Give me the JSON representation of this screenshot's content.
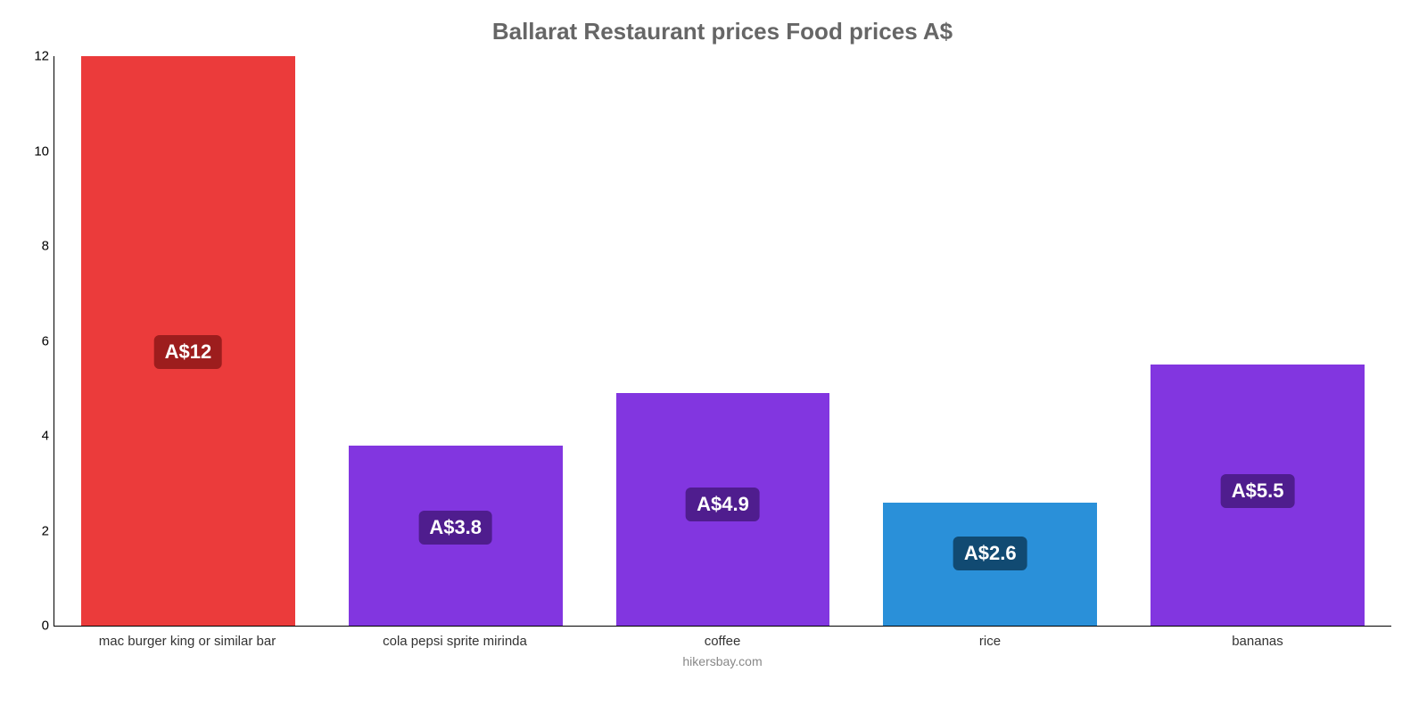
{
  "chart": {
    "type": "bar",
    "title": "Ballarat Restaurant prices Food prices A$",
    "title_color": "#666666",
    "title_fontsize": 26,
    "caption": "hikersbay.com",
    "caption_color": "#888888",
    "background_color": "#ffffff",
    "axis_color": "#000000",
    "ylim": [
      0,
      12
    ],
    "yticks": [
      0,
      2,
      4,
      6,
      8,
      10,
      12
    ],
    "bar_width_pct": 80,
    "categories": [
      "mac burger king or similar bar",
      "cola pepsi sprite mirinda",
      "coffee",
      "rice",
      "bananas"
    ],
    "values": [
      12,
      3.8,
      4.9,
      2.6,
      5.5
    ],
    "value_labels": [
      "A$12",
      "A$3.8",
      "A$4.9",
      "A$2.6",
      "A$5.5"
    ],
    "bar_colors": [
      "#eb3b3b",
      "#8236e0",
      "#8236e0",
      "#2a90d9",
      "#8236e0"
    ],
    "badge_colors": [
      "#9d1d1d",
      "#4f1d8e",
      "#4f1d8e",
      "#114a72",
      "#4f1d8e"
    ],
    "label_fontsize": 15,
    "value_fontsize": 22
  }
}
